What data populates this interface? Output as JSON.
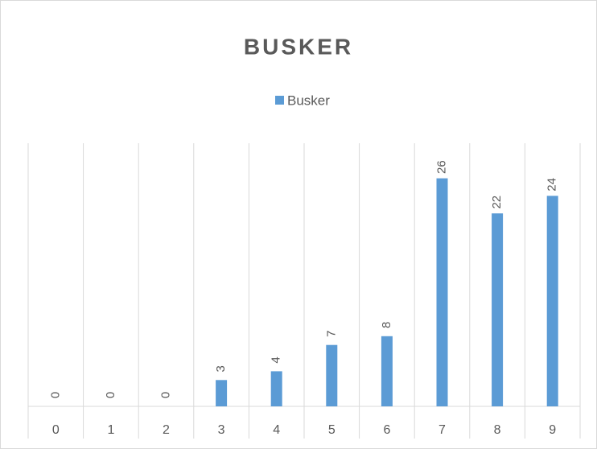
{
  "chart_data": {
    "type": "bar",
    "title": "BUSKER",
    "categories": [
      "0",
      "1",
      "2",
      "3",
      "4",
      "5",
      "6",
      "7",
      "8",
      "9"
    ],
    "series": [
      {
        "name": "Busker",
        "color": "#5b9bd5",
        "values": [
          0,
          0,
          0,
          3,
          4,
          7,
          8,
          26,
          22,
          24
        ]
      }
    ],
    "ylim": [
      0,
      30
    ],
    "legend": "top"
  }
}
